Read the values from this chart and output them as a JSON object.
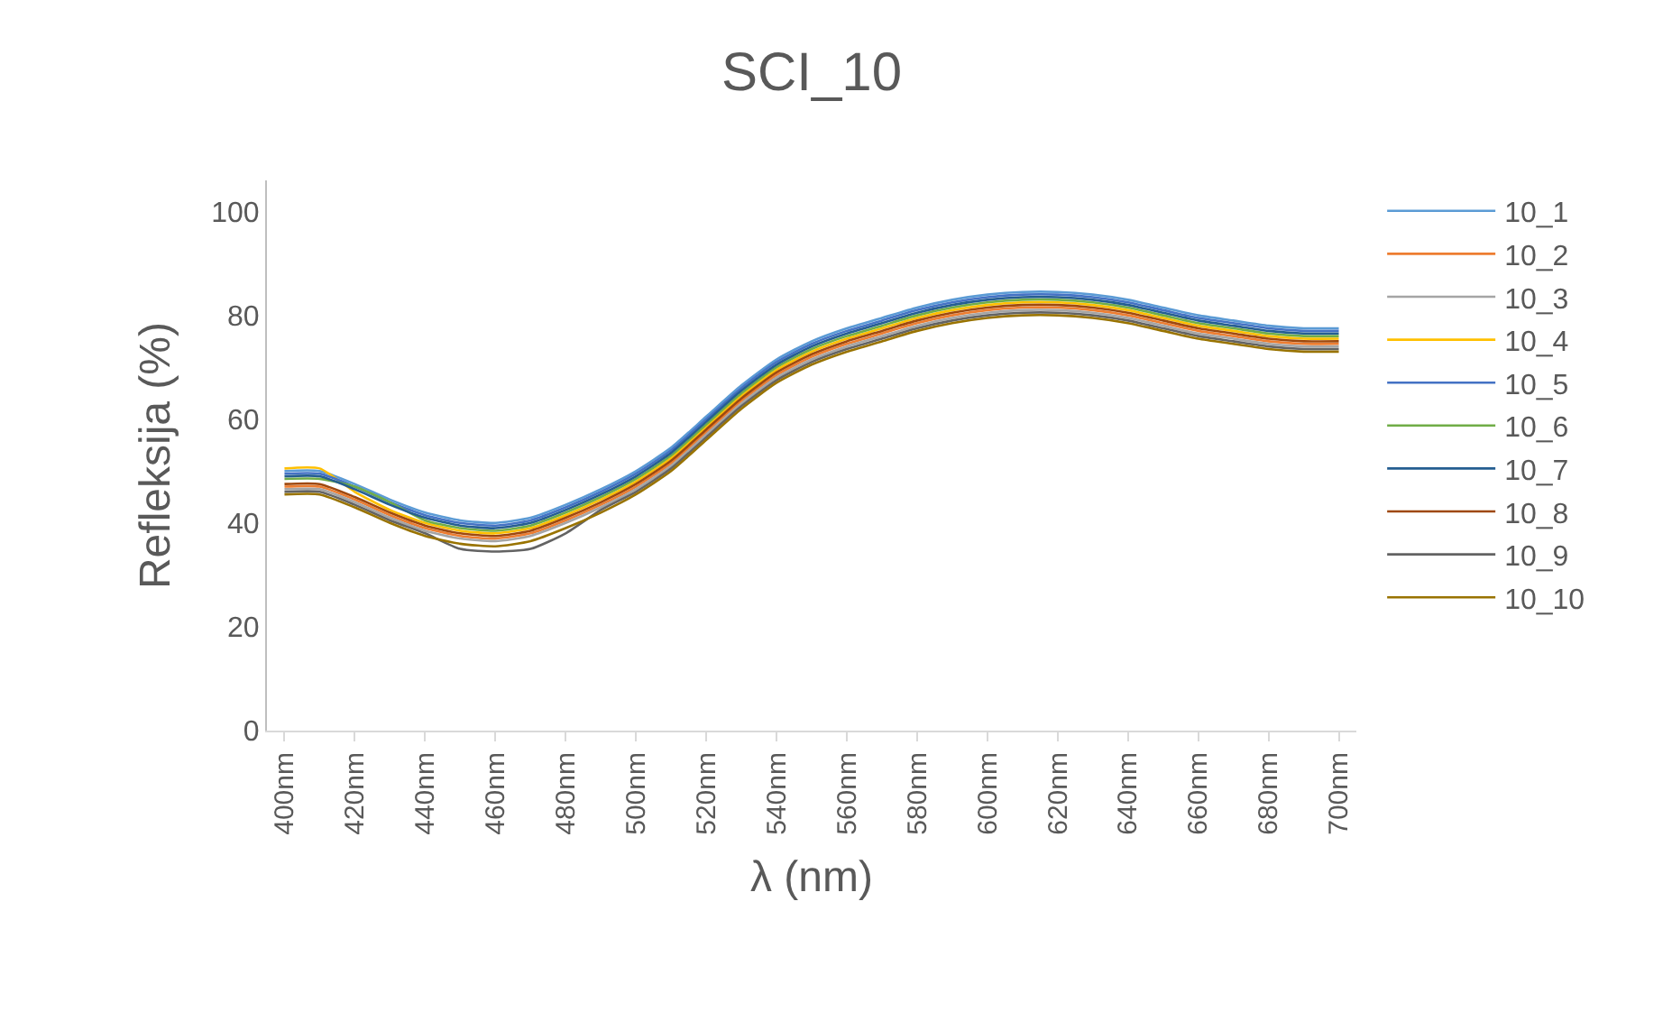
{
  "chart_data": {
    "type": "line",
    "title": "SCI_10",
    "xlabel": "λ (nm)",
    "ylabel": "Refleksija (%)",
    "categories": [
      "400nm",
      null,
      "420nm",
      null,
      "440nm",
      null,
      "460nm",
      null,
      "480nm",
      null,
      "500nm",
      null,
      "520nm",
      null,
      "540nm",
      null,
      "560nm",
      null,
      "580nm",
      null,
      "600nm",
      null,
      "620nm",
      null,
      "640nm",
      null,
      "660nm",
      null,
      "680nm",
      null,
      "700nm"
    ],
    "ylim": [
      0,
      106
    ],
    "grid": false,
    "yticks": [
      0,
      20,
      40,
      60,
      80,
      100
    ],
    "legend": "right",
    "marker": "none",
    "line_style": "solid",
    "series": [
      {
        "name": "10_1",
        "color": "#5b9bd5",
        "values": [
          50,
          50,
          47.5,
          44.5,
          42,
          40.5,
          40,
          41,
          43.5,
          46.5,
          50,
          54.5,
          60.5,
          66.5,
          71.5,
          75,
          77.5,
          79.5,
          81.5,
          83,
          84,
          84.5,
          84.5,
          84,
          83,
          81.5,
          80,
          79,
          78,
          77.5,
          77.5
        ]
      },
      {
        "name": "10_2",
        "color": "#ed7d31",
        "values": [
          47,
          47,
          44.5,
          41.5,
          39,
          37.5,
          37,
          38,
          40.5,
          43.5,
          47,
          51.5,
          57.5,
          63.5,
          68.5,
          72,
          74.5,
          76.5,
          78.5,
          80,
          81,
          81.5,
          81.5,
          81,
          80,
          78.5,
          77,
          76,
          75,
          74.5,
          74.5
        ]
      },
      {
        "name": "10_3",
        "color": "#a5a5a5",
        "values": [
          46.5,
          46.5,
          44,
          41,
          38.5,
          37,
          36.5,
          37.5,
          40,
          43,
          46.5,
          51,
          57,
          63,
          68,
          71.5,
          74,
          76,
          78,
          79.5,
          80.5,
          81,
          81,
          80.5,
          79.5,
          78,
          76.5,
          75.5,
          74.5,
          74,
          74
        ]
      },
      {
        "name": "10_4",
        "color": "#ffc000",
        "values": [
          50.5,
          50.5,
          46,
          42.5,
          40,
          38.5,
          38,
          39,
          41.5,
          44.5,
          48,
          52.5,
          58.5,
          64.5,
          69.5,
          73,
          75.5,
          77.5,
          79.5,
          81,
          82,
          82.5,
          82.5,
          82,
          81,
          79.5,
          78,
          77,
          76,
          75.5,
          75.5
        ]
      },
      {
        "name": "10_5",
        "color": "#4472c4",
        "values": [
          49.5,
          49.5,
          47,
          44,
          41.5,
          40,
          39.5,
          40.5,
          43,
          46,
          49.5,
          54,
          60,
          66,
          71,
          74.5,
          77,
          79,
          81,
          82.5,
          83.5,
          84,
          84,
          83.5,
          82.5,
          81,
          79.5,
          78.5,
          77.5,
          77,
          77
        ]
      },
      {
        "name": "10_6",
        "color": "#70ad47",
        "values": [
          48.5,
          48.5,
          47,
          44,
          40.5,
          39,
          38.5,
          39.5,
          42,
          45,
          48.5,
          53,
          59,
          65,
          70,
          73.5,
          76,
          78,
          80,
          81.5,
          82.5,
          83,
          83,
          82.5,
          81.5,
          80,
          78.5,
          77.5,
          76.5,
          76,
          76
        ]
      },
      {
        "name": "10_7",
        "color": "#255e91",
        "values": [
          49,
          49,
          46.5,
          43.5,
          41,
          39.5,
          39,
          40,
          42.5,
          45.5,
          49,
          53.5,
          59.5,
          65.5,
          70.5,
          74,
          76.5,
          78.5,
          80.5,
          82,
          83,
          83.5,
          83.5,
          83,
          82,
          80.5,
          79,
          78,
          77,
          76.5,
          76.5
        ]
      },
      {
        "name": "10_8",
        "color": "#9e480e",
        "values": [
          47.5,
          47.5,
          45,
          42,
          39.5,
          38,
          37.5,
          38.5,
          41,
          44,
          47.5,
          52,
          58,
          64,
          69,
          72.5,
          75,
          77,
          79,
          80.5,
          81.5,
          82,
          82,
          81.5,
          80.5,
          79,
          77.5,
          76.5,
          75.5,
          75,
          75
        ]
      },
      {
        "name": "10_9",
        "color": "#636363",
        "values": [
          46,
          46,
          43.5,
          40.5,
          38,
          35,
          34.5,
          35,
          38,
          42.5,
          46,
          50.5,
          56.5,
          62.5,
          67.5,
          71,
          73.5,
          75.5,
          77.5,
          79,
          80,
          80.5,
          80.5,
          80,
          79,
          77.5,
          76,
          75,
          74,
          73.5,
          73.5
        ]
      },
      {
        "name": "10_10",
        "color": "#997300",
        "values": [
          45.5,
          45.5,
          43,
          40,
          37.5,
          36,
          35.5,
          36.5,
          39,
          42,
          45.5,
          50,
          56,
          62,
          67,
          70.5,
          73,
          75,
          77,
          78.5,
          79.5,
          80,
          80,
          79.5,
          78.5,
          77,
          75.5,
          74.5,
          73.5,
          73,
          73
        ]
      }
    ]
  }
}
